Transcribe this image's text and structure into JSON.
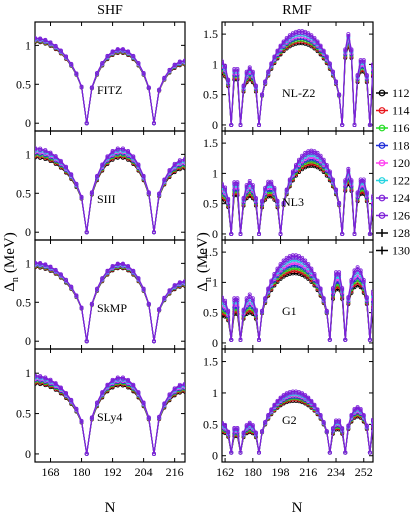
{
  "columns": [
    {
      "title": "SHF"
    },
    {
      "title": "RMF"
    }
  ],
  "ylabel_main": "Δ",
  "ylabel_sub": "n",
  "ylabel_unit": "(MeV)",
  "xlabel": "N",
  "legend": [
    "112",
    "114",
    "116",
    "118",
    "120",
    "122",
    "124",
    "126",
    "128",
    "130"
  ],
  "colors": {
    "112": "#000000",
    "114": "#e8141a",
    "116": "#22dd22",
    "118": "#1e2cd8",
    "120": "#ff3cf0",
    "122": "#22d4e0",
    "124": "#7d1fd8",
    "126": "#7d1fd8",
    "128": "#000000",
    "130": "#000000"
  },
  "chart_data": [
    {
      "type": "line",
      "panel": "FITZ",
      "column": "SHF",
      "xlim": [
        162,
        220
      ],
      "ylim": [
        -0.1,
        1.3
      ],
      "xticks": [
        168,
        180,
        192,
        204,
        216
      ],
      "yticks": [
        0,
        0.5,
        1
      ],
      "magic": [
        182,
        208
      ],
      "xmin": 162,
      "xmax": 220,
      "peaks": [
        1.07,
        0.93,
        0.78
      ],
      "spread": 0.05,
      "dip": 0.0
    },
    {
      "type": "line",
      "panel": "SIII",
      "column": "SHF",
      "xlim": [
        162,
        220
      ],
      "ylim": [
        -0.1,
        1.3
      ],
      "xticks": [
        168,
        180,
        192,
        204,
        216
      ],
      "yticks": [
        0,
        0.5,
        1
      ],
      "magic": [
        182,
        208
      ],
      "xmin": 162,
      "xmax": 220,
      "peaks": [
        1.02,
        1.02,
        0.88
      ],
      "spread": 0.12,
      "dip": 0.0
    },
    {
      "type": "line",
      "panel": "SkMP",
      "column": "SHF",
      "xlim": [
        162,
        220
      ],
      "ylim": [
        -0.1,
        1.3
      ],
      "xticks": [
        168,
        180,
        192,
        204,
        216
      ],
      "yticks": [
        0,
        0.5,
        1
      ],
      "magic": [
        182,
        208
      ],
      "xmin": 162,
      "xmax": 220,
      "peaks": [
        0.98,
        0.97,
        0.74
      ],
      "spread": 0.06,
      "dip": 0.0
    },
    {
      "type": "line",
      "panel": "SLy4",
      "column": "SHF",
      "xlim": [
        162,
        220
      ],
      "ylim": [
        -0.1,
        1.3
      ],
      "xticks": [
        168,
        180,
        192,
        204,
        216
      ],
      "yticks": [
        0,
        0.5,
        1
      ],
      "magic": [
        182,
        208
      ],
      "xmin": 162,
      "xmax": 220,
      "peaks": [
        0.92,
        0.9,
        0.82
      ],
      "spread": 0.1,
      "dip": 0.0
    },
    {
      "type": "line",
      "panel": "NL-Z2",
      "column": "RMF",
      "xlim": [
        160,
        258
      ],
      "ylim": [
        -0.1,
        1.7
      ],
      "xticks": [
        162,
        180,
        198,
        216,
        234,
        252
      ],
      "yticks": [
        0,
        0.5,
        1,
        1.5
      ],
      "magic": [
        166,
        172,
        184,
        238,
        246,
        256
      ],
      "xmin": 160,
      "xmax": 258,
      "peaks": [
        0.95,
        0.9,
        0.85,
        1.45,
        1.4,
        1.0,
        0.9
      ],
      "spread": 0.2,
      "dip": 0.0
    },
    {
      "type": "line",
      "panel": "NL3",
      "column": "RMF",
      "xlim": [
        160,
        258
      ],
      "ylim": [
        -0.1,
        1.7
      ],
      "xticks": [
        162,
        180,
        198,
        216,
        234,
        252
      ],
      "yticks": [
        0,
        0.5,
        1,
        1.5
      ],
      "magic": [
        166,
        172,
        184,
        198,
        238,
        246,
        256
      ],
      "xmin": 160,
      "xmax": 258,
      "peaks": [
        0.7,
        0.8,
        0.75,
        0.75,
        1.25,
        0.95,
        0.8,
        0.5
      ],
      "spread": 0.25,
      "dip": 0.0
    },
    {
      "type": "line",
      "panel": "G1",
      "column": "RMF",
      "xlim": [
        160,
        258
      ],
      "ylim": [
        -0.1,
        1.7
      ],
      "xticks": [
        162,
        180,
        198,
        216,
        234,
        252
      ],
      "yticks": [
        0,
        0.5,
        1,
        1.5
      ],
      "magic": [
        166,
        172,
        184,
        230,
        240,
        256
      ],
      "xmin": 160,
      "xmax": 258,
      "peaks": [
        0.6,
        0.65,
        0.65,
        1.3,
        1.05,
        1.1,
        0.7
      ],
      "spread": 0.3,
      "dip": 0.05
    },
    {
      "type": "line",
      "panel": "G2",
      "column": "RMF",
      "xlim": [
        160,
        258
      ],
      "ylim": [
        -0.1,
        1.7
      ],
      "xticks": [
        162,
        180,
        198,
        216,
        234,
        252
      ],
      "yticks": [
        0,
        0.5,
        1,
        1.5
      ],
      "magic": [
        166,
        172,
        184,
        230,
        240,
        256
      ],
      "xmin": 160,
      "xmax": 258,
      "peaks": [
        0.45,
        0.4,
        0.45,
        0.95,
        0.5,
        0.7,
        0.5
      ],
      "spread": 0.15,
      "dip": 0.05
    }
  ]
}
